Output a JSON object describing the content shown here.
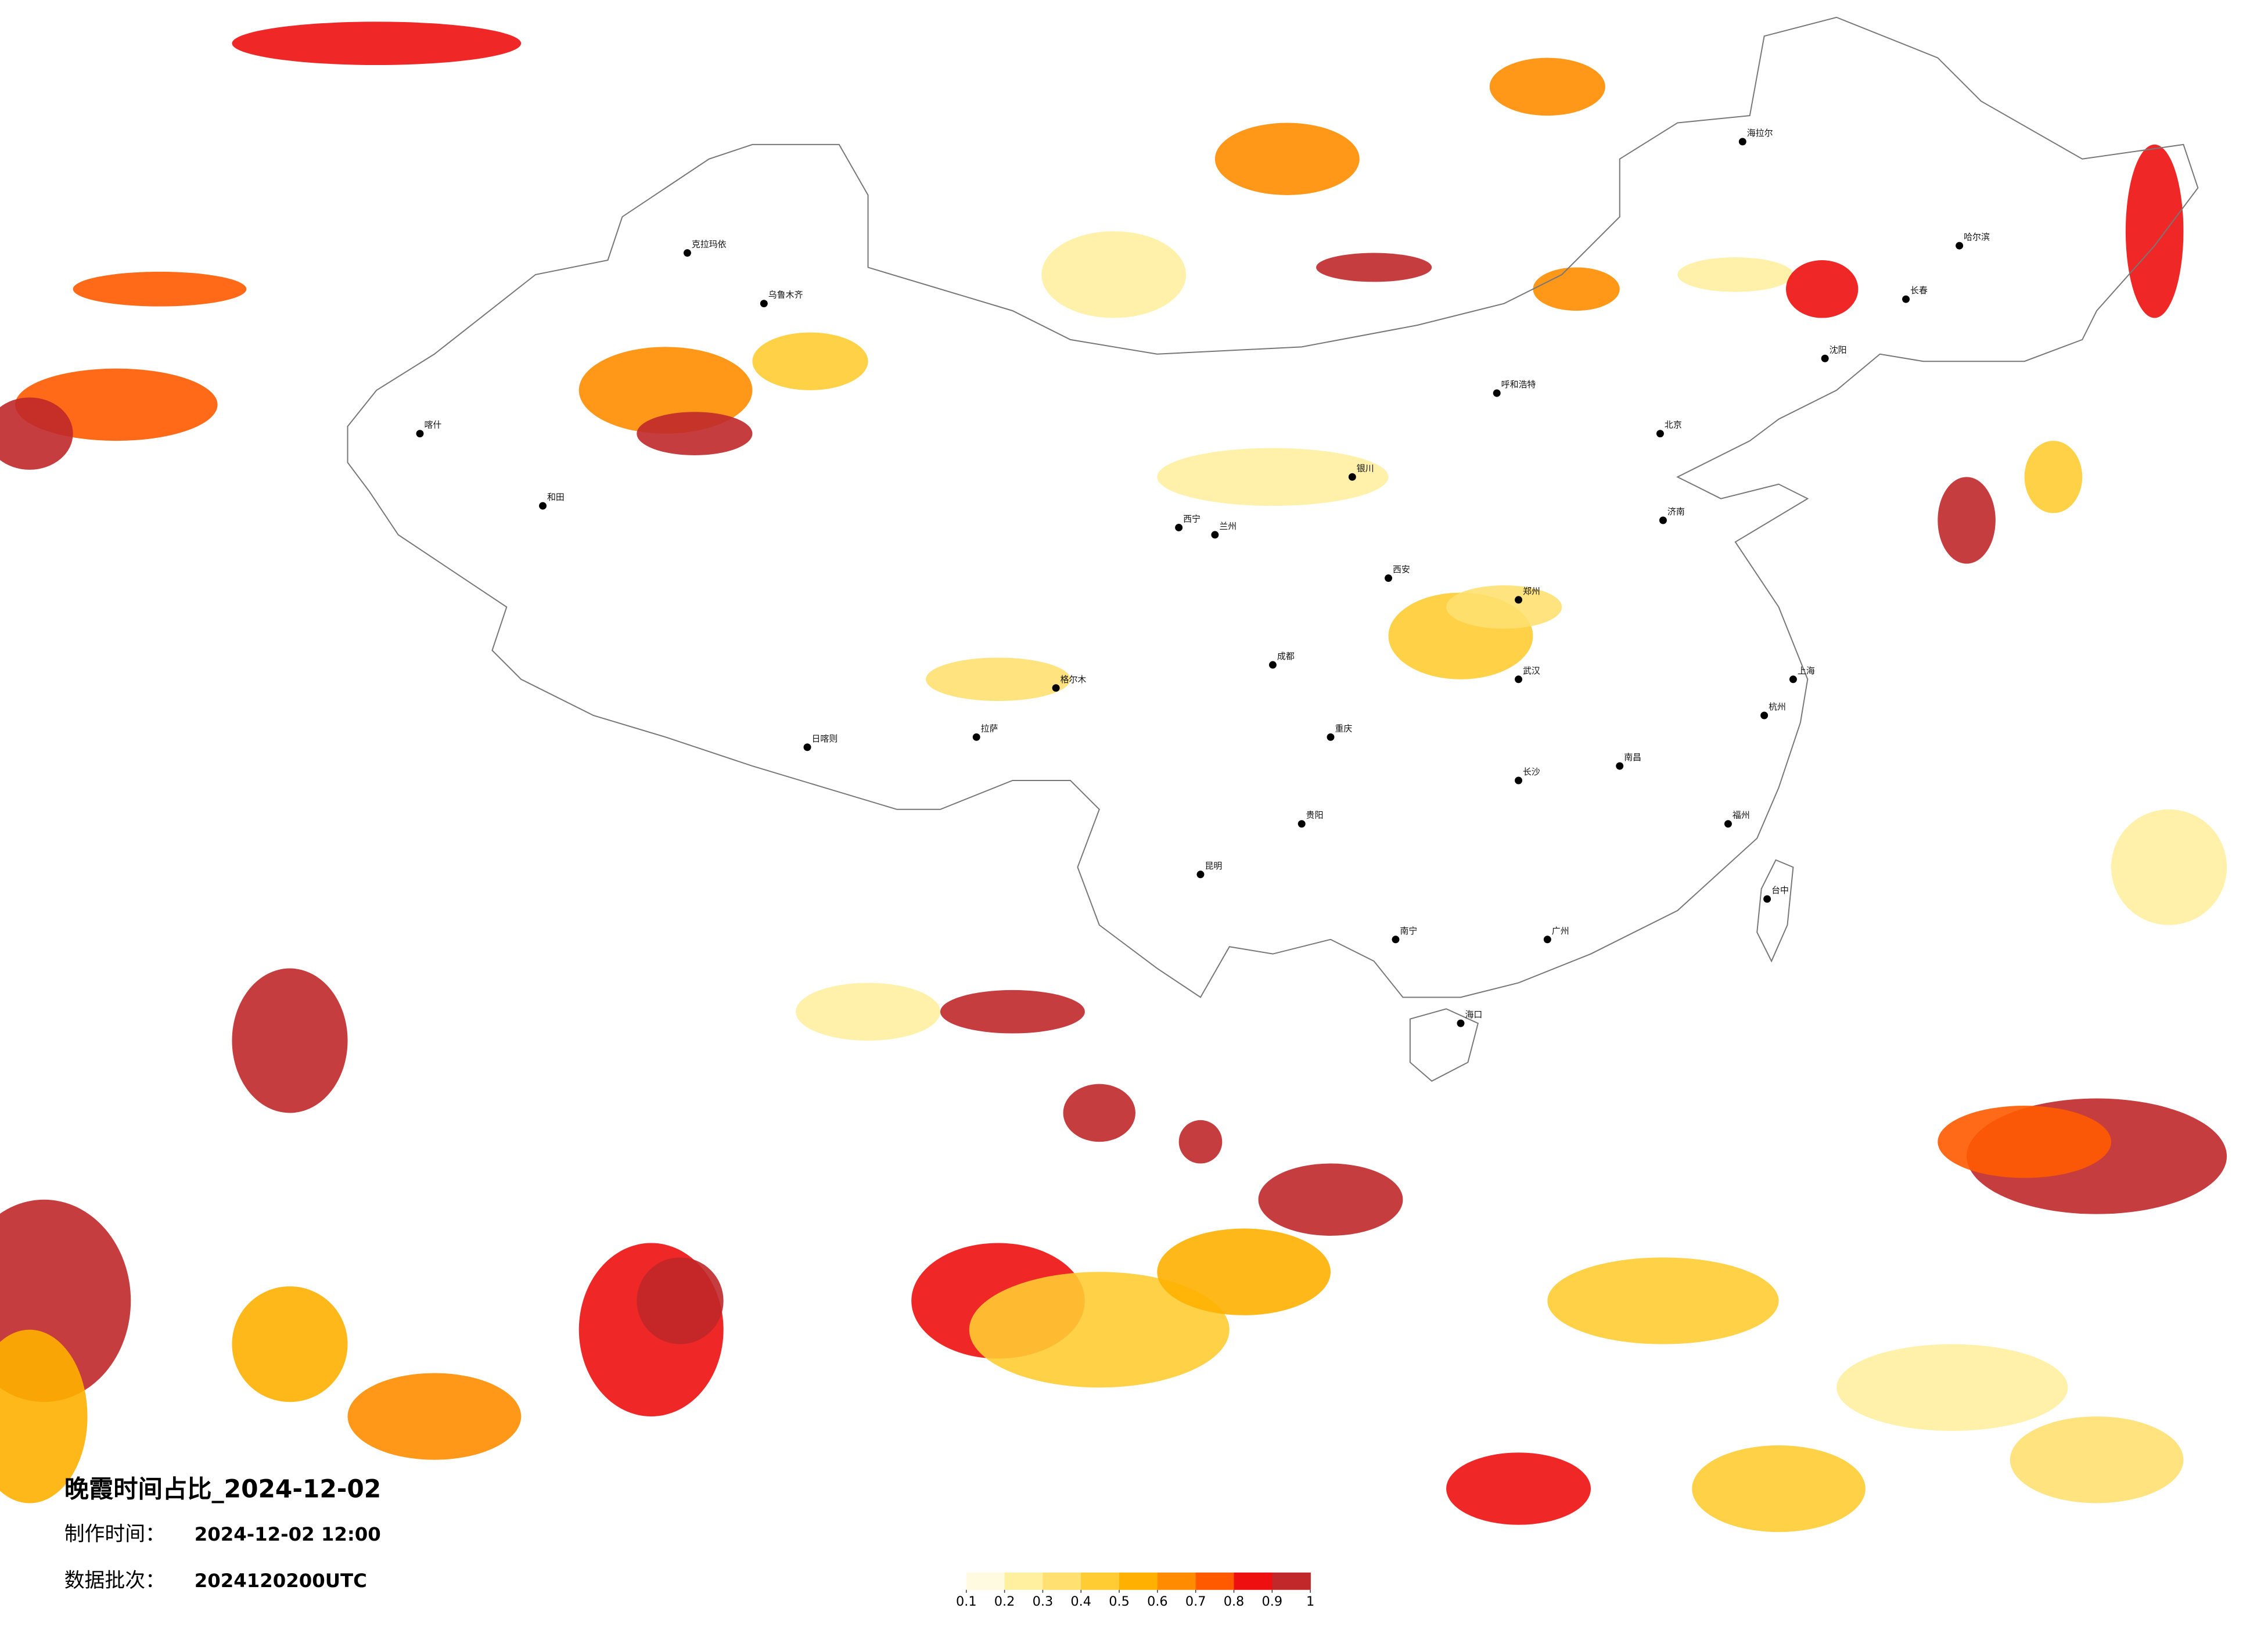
{
  "title": "晚霞时间占比_2024-12-02",
  "made_label": "制作时间：",
  "made_time": "2024-12-02 12:00",
  "batch_label": "数据批次：",
  "batch": "2024120200UTC",
  "legend": {
    "colors": [
      "#fffae0",
      "#fff0a0",
      "#ffe070",
      "#ffcc33",
      "#ffb000",
      "#ff8c00",
      "#ff5a00",
      "#ee1010",
      "#c0282a"
    ],
    "range": [
      0.1,
      1
    ],
    "ticks": [
      0.1,
      0.2,
      0.3,
      0.4,
      0.5,
      0.6,
      0.7,
      0.8,
      0.9,
      1
    ]
  },
  "cities": [
    "北京",
    "上海",
    "广州",
    "乌鲁木齐",
    "拉萨",
    "哈尔滨",
    "成都",
    "西安",
    "昆明",
    "武汉",
    "兰州",
    "呼和浩特",
    "海拉尔",
    "喀什",
    "和田",
    "克拉玛依",
    "格尔木",
    "日喀则",
    "西宁",
    "银川",
    "重庆",
    "贵阳",
    "南宁",
    "海口",
    "福州",
    "长春",
    "沈阳",
    "济南",
    "郑州",
    "长沙",
    "南昌",
    "杭州",
    "台中"
  ]
}
